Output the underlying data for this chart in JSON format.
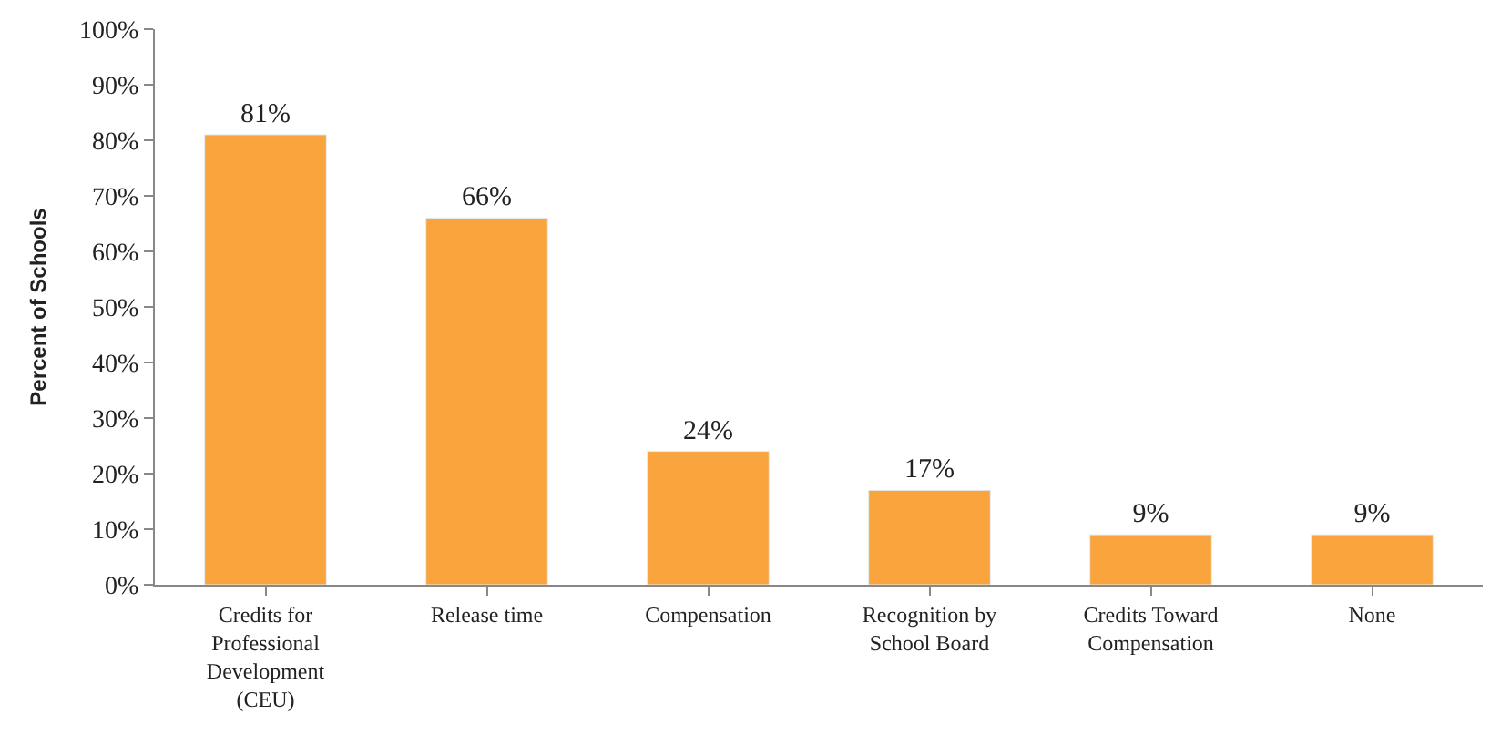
{
  "chart_data": {
    "type": "bar",
    "ylabel": "Percent of Schools",
    "categories": [
      "Credits for Professional Development (CEU)",
      "Release time",
      "Compensation",
      "Recognition by School Board",
      "Credits Toward Compensation",
      "None"
    ],
    "values": [
      81,
      66,
      24,
      17,
      9,
      9
    ],
    "value_labels": [
      "81%",
      "66%",
      "24%",
      "17%",
      "9%",
      "9%"
    ],
    "color": "#f9a43c",
    "ylim": [
      0,
      100
    ],
    "yticks": [
      {
        "value": 0,
        "label": "0%"
      },
      {
        "value": 10,
        "label": "10%"
      },
      {
        "value": 20,
        "label": "20%"
      },
      {
        "value": 30,
        "label": "30%"
      },
      {
        "value": 40,
        "label": "40%"
      },
      {
        "value": 50,
        "label": "50%"
      },
      {
        "value": 60,
        "label": "60%"
      },
      {
        "value": 70,
        "label": "70%"
      },
      {
        "value": 80,
        "label": "80%"
      },
      {
        "value": 90,
        "label": "90%"
      },
      {
        "value": 100,
        "label": "100%"
      }
    ],
    "grid": false
  }
}
